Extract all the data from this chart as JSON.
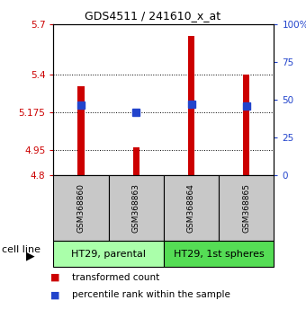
{
  "title": "GDS4511 / 241610_x_at",
  "samples": [
    "GSM368860",
    "GSM368863",
    "GSM368864",
    "GSM368865"
  ],
  "red_values": [
    5.33,
    4.97,
    5.63,
    5.4
  ],
  "blue_values": [
    5.22,
    5.175,
    5.225,
    5.215
  ],
  "ylim_left": [
    4.8,
    5.7
  ],
  "ylim_right": [
    0,
    100
  ],
  "yticks_left": [
    4.8,
    4.95,
    5.175,
    5.4,
    5.7
  ],
  "yticks_right": [
    0,
    25,
    50,
    75,
    100
  ],
  "ytick_labels_left": [
    "4.8",
    "4.95",
    "5.175",
    "5.4",
    "5.7"
  ],
  "ytick_labels_right": [
    "0",
    "25",
    "50",
    "75",
    "100%"
  ],
  "cell_lines": [
    "HT29, parental",
    "HT29, 1st spheres"
  ],
  "cell_line_spans": [
    [
      0,
      1
    ],
    [
      2,
      3
    ]
  ],
  "bar_color": "#cc0000",
  "blue_color": "#2244cc",
  "bar_width": 0.12,
  "blue_marker_size": 6,
  "bg_sample_box": "#c8c8c8",
  "bg_cellline_parental": "#aaffaa",
  "bg_cellline_spheres": "#55dd55",
  "left_tick_color": "#cc0000",
  "right_tick_color": "#2244cc",
  "base_value": 4.8,
  "title_fontsize": 9,
  "tick_fontsize": 7.5,
  "sample_fontsize": 6.5,
  "cellline_fontsize": 8,
  "legend_fontsize": 7.5,
  "cellline_label_fontsize": 8
}
